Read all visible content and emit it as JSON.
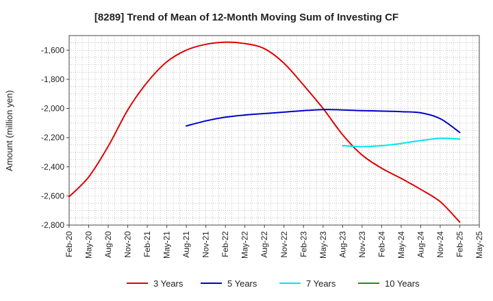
{
  "chart_data": {
    "type": "line",
    "title": "[8289]  Trend of Mean of 12-Month Moving Sum of Investing CF",
    "xlabel": "",
    "ylabel": "Amount (million yen)",
    "ylim": [
      -2800,
      -1500
    ],
    "yticks": [
      -1600,
      -1800,
      -2000,
      -2200,
      -2400,
      -2600,
      -2800
    ],
    "ytick_labels": [
      "-1,600",
      "-1,800",
      "-2,000",
      "-2,200",
      "-2,400",
      "-2,600",
      "-2,800"
    ],
    "xlim": [
      "2020-02",
      "2025-05"
    ],
    "xtick_labels": [
      "Feb-20",
      "May-20",
      "Aug-20",
      "Nov-20",
      "Feb-21",
      "May-21",
      "Aug-21",
      "Nov-21",
      "Feb-22",
      "May-22",
      "Aug-22",
      "Nov-22",
      "Feb-23",
      "May-23",
      "Aug-23",
      "Nov-23",
      "Feb-24",
      "May-24",
      "Aug-24",
      "Nov-24",
      "Feb-25",
      "May-25"
    ],
    "grid": true,
    "legend_position": "bottom",
    "series": [
      {
        "name": "3 Years",
        "color": "#dd0000",
        "points": [
          [
            "2020-02",
            -2605
          ],
          [
            "2020-05",
            -2470
          ],
          [
            "2020-08",
            -2260
          ],
          [
            "2020-11",
            -2010
          ],
          [
            "2021-02",
            -1820
          ],
          [
            "2021-05",
            -1680
          ],
          [
            "2021-08",
            -1600
          ],
          [
            "2021-11",
            -1560
          ],
          [
            "2022-02",
            -1545
          ],
          [
            "2022-05",
            -1555
          ],
          [
            "2022-08",
            -1590
          ],
          [
            "2022-11",
            -1690
          ],
          [
            "2023-02",
            -1840
          ],
          [
            "2023-05",
            -2000
          ],
          [
            "2023-08",
            -2180
          ],
          [
            "2023-11",
            -2320
          ],
          [
            "2024-02",
            -2410
          ],
          [
            "2024-05",
            -2480
          ],
          [
            "2024-08",
            -2555
          ],
          [
            "2024-11",
            -2640
          ],
          [
            "2025-02",
            -2780
          ]
        ]
      },
      {
        "name": "5 Years",
        "color": "#0000cc",
        "points": [
          [
            "2021-08",
            -2120
          ],
          [
            "2021-11",
            -2085
          ],
          [
            "2022-02",
            -2060
          ],
          [
            "2022-05",
            -2045
          ],
          [
            "2022-08",
            -2035
          ],
          [
            "2022-11",
            -2025
          ],
          [
            "2023-02",
            -2015
          ],
          [
            "2023-05",
            -2008
          ],
          [
            "2023-08",
            -2010
          ],
          [
            "2023-11",
            -2015
          ],
          [
            "2024-02",
            -2018
          ],
          [
            "2024-05",
            -2022
          ],
          [
            "2024-08",
            -2030
          ],
          [
            "2024-11",
            -2070
          ],
          [
            "2025-02",
            -2165
          ]
        ]
      },
      {
        "name": "7 Years",
        "color": "#00e5ee",
        "points": [
          [
            "2023-08",
            -2255
          ],
          [
            "2023-11",
            -2262
          ],
          [
            "2024-02",
            -2255
          ],
          [
            "2024-05",
            -2240
          ],
          [
            "2024-08",
            -2220
          ],
          [
            "2024-11",
            -2205
          ],
          [
            "2025-02",
            -2210
          ]
        ]
      },
      {
        "name": "10 Years",
        "color": "#228b22",
        "points": []
      }
    ]
  }
}
